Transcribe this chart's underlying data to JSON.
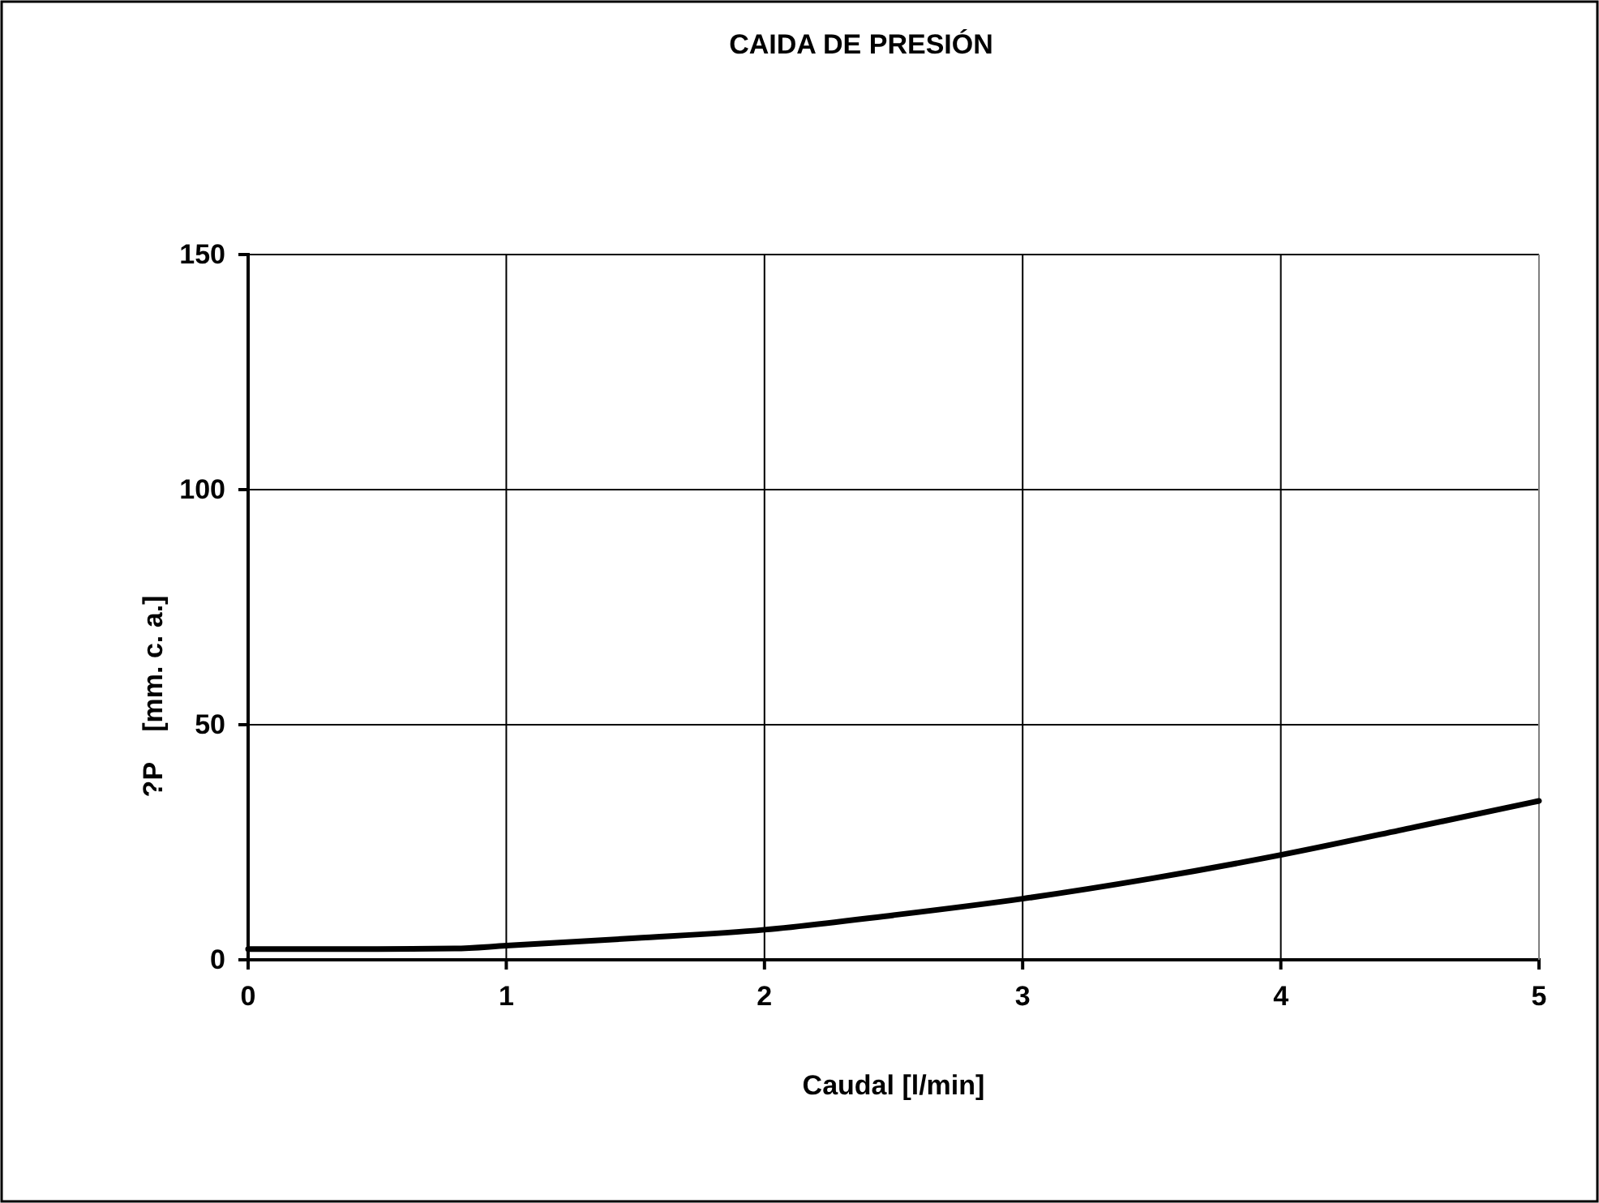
{
  "chart_data": {
    "type": "line",
    "title": "CAIDA DE PRESIÓN",
    "xlabel": "Caudal [l/min]",
    "ylabel": "?P    [mm. c. a.]",
    "x": [
      0,
      0.5,
      0.8,
      1,
      1.5,
      2,
      2.5,
      3,
      3.5,
      4,
      4.5,
      5
    ],
    "series": [
      {
        "color": "#000000",
        "values": [
          2.3,
          2.3,
          2.4,
          3.0,
          4.6,
          6.4,
          9.5,
          13,
          17.3,
          22.3,
          28,
          33.8
        ]
      }
    ],
    "xlim": [
      0,
      5
    ],
    "ylim": [
      0,
      150
    ],
    "xticks": [
      0,
      1,
      2,
      3,
      4,
      5
    ],
    "yticks": [
      0,
      50,
      100,
      150
    ],
    "grid": true,
    "marker": "none",
    "line_style": "solid"
  }
}
